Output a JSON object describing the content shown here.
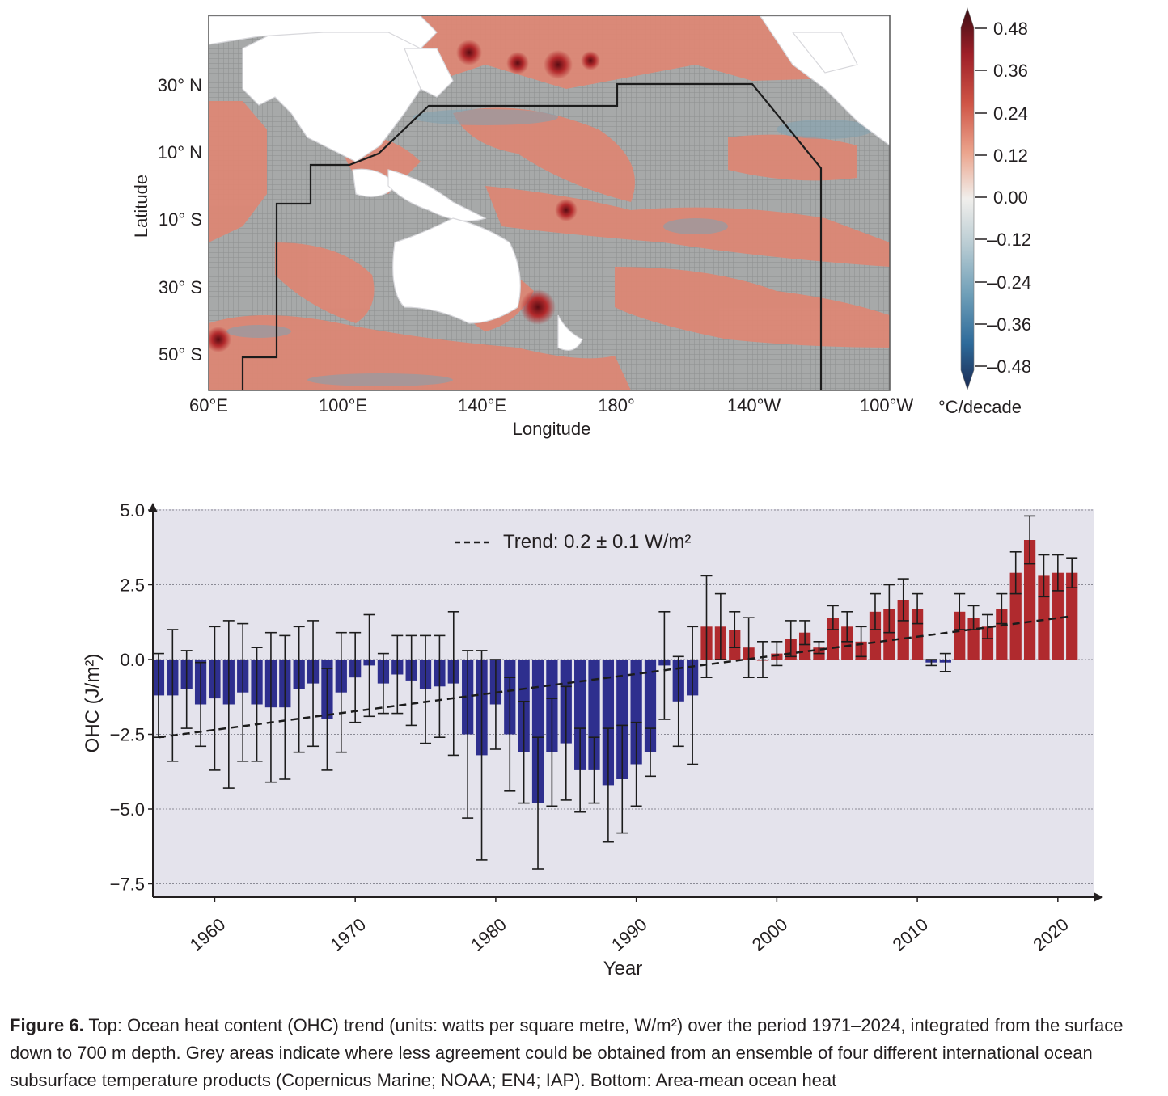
{
  "map": {
    "ylabel": "Latitude",
    "xlabel": "Longitude",
    "lat_ticks": [
      "30° N",
      "10° N",
      "10° S",
      "30° S",
      "50° S"
    ],
    "lon_ticks": [
      "60°E",
      "100°E",
      "140°E",
      "180°",
      "140°W",
      "100°W"
    ],
    "colorbar": {
      "ticks": [
        "0.48",
        "0.36",
        "0.24",
        "0.12",
        "0.00",
        "–0.12",
        "–0.24",
        "–0.36",
        "–0.48"
      ],
      "unit": "°C/decade",
      "colors": [
        "#3b0f14",
        "#9e1f28",
        "#cf5546",
        "#eba58e",
        "#f1efec",
        "#b9ccd3",
        "#6f9fb8",
        "#2d6a9a",
        "#1b2a52"
      ]
    },
    "land_color": "#ffffff",
    "ocean_red": "#dd8a77",
    "ocean_grey": "#a9aaa9"
  },
  "chart_data": {
    "type": "bar",
    "ylabel": "OHC (J/m²)",
    "xlabel": "Year",
    "ylim": [
      -8,
      5
    ],
    "yticks": [
      5.0,
      2.5,
      0.0,
      -2.5,
      -5.0,
      -7.5
    ],
    "ytick_labels": [
      "5.0",
      "2.5",
      "0.0",
      "−2.5",
      "−5.0",
      "−7.5"
    ],
    "xlim": [
      1955.6,
      2022.6
    ],
    "xticks": [
      1960,
      1970,
      1980,
      1990,
      2000,
      2010,
      2020
    ],
    "xtick_labels": [
      "1960",
      "1970",
      "1980",
      "1990",
      "2000",
      "2010",
      "2020"
    ],
    "grid": true,
    "legend": "top-center",
    "trend_label": "Trend: 0.2 ± 0.1 W/m²",
    "trend_line": {
      "x": [
        1956,
        2021
      ],
      "y": [
        -2.6,
        1.45
      ]
    },
    "colors": {
      "positive": "#b02a2e",
      "negative": "#2e2f8e",
      "background": "#e4e3ec"
    },
    "years": [
      1956,
      1957,
      1958,
      1959,
      1960,
      1961,
      1962,
      1963,
      1964,
      1965,
      1966,
      1967,
      1968,
      1969,
      1970,
      1971,
      1972,
      1973,
      1974,
      1975,
      1976,
      1977,
      1978,
      1979,
      1980,
      1981,
      1982,
      1983,
      1984,
      1985,
      1986,
      1987,
      1988,
      1989,
      1990,
      1991,
      1992,
      1993,
      1994,
      1995,
      1996,
      1997,
      1998,
      1999,
      2000,
      2001,
      2002,
      2003,
      2004,
      2005,
      2006,
      2007,
      2008,
      2009,
      2010,
      2011,
      2012,
      2013,
      2014,
      2015,
      2016,
      2017,
      2018,
      2019,
      2020,
      2021
    ],
    "values": [
      -1.2,
      -1.2,
      -1.0,
      -1.5,
      -1.3,
      -1.5,
      -1.1,
      -1.5,
      -1.6,
      -1.6,
      -1.0,
      -0.8,
      -2.0,
      -1.1,
      -0.6,
      -0.2,
      -0.8,
      -0.5,
      -0.7,
      -1.0,
      -0.9,
      -0.8,
      -2.5,
      -3.2,
      -1.5,
      -2.5,
      -3.1,
      -4.8,
      -3.1,
      -2.8,
      -3.7,
      -3.7,
      -4.2,
      -4.0,
      -3.5,
      -3.1,
      -0.2,
      -1.4,
      -1.2,
      1.1,
      1.1,
      1.0,
      0.4,
      0.0,
      0.2,
      0.7,
      0.9,
      0.4,
      1.4,
      1.1,
      0.6,
      1.6,
      1.7,
      2.0,
      1.7,
      -0.1,
      -0.1,
      1.6,
      1.4,
      1.1,
      1.7,
      2.9,
      4.0,
      2.8,
      2.9,
      2.9
    ],
    "errors": [
      1.4,
      2.2,
      1.3,
      1.4,
      2.4,
      2.8,
      2.3,
      1.9,
      2.5,
      2.4,
      2.1,
      2.1,
      1.7,
      2.0,
      1.5,
      1.7,
      1.0,
      1.3,
      1.5,
      1.8,
      1.7,
      2.4,
      2.8,
      3.5,
      1.5,
      1.9,
      1.7,
      2.2,
      1.8,
      1.9,
      1.4,
      1.1,
      1.9,
      1.8,
      1.4,
      0.8,
      1.8,
      1.5,
      2.3,
      1.7,
      1.1,
      0.6,
      1.0,
      0.6,
      0.4,
      0.6,
      0.4,
      0.2,
      0.4,
      0.5,
      0.5,
      0.6,
      0.8,
      0.7,
      0.5,
      0.1,
      0.3,
      0.6,
      0.4,
      0.4,
      0.5,
      0.7,
      0.8,
      0.7,
      0.6,
      0.5
    ]
  },
  "caption": {
    "lead": "Figure 6.",
    "text": " Top: Ocean heat content (OHC) trend (units: watts per square metre, W/m²) over the period 1971–2024, integrated from the surface down to 700 m depth. Grey areas indicate where less agreement could be obtained from an ensemble of four different international ocean subsurface temperature products (Copernicus Marine; NOAA; EN4; IAP). Bottom: Area-mean ocean heat"
  }
}
